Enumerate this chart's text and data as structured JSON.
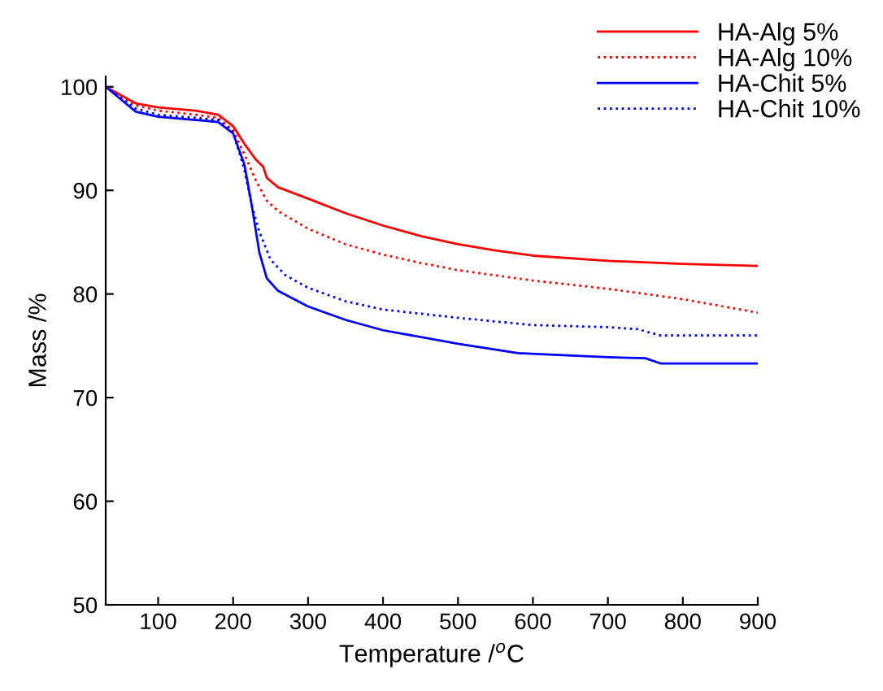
{
  "chart_data": {
    "type": "line",
    "xlabel": "Temperature /$^{o}$C",
    "ylabel": "Mass /%",
    "xlim": [
      30,
      900
    ],
    "ylim": [
      50,
      101
    ],
    "xticks": [
      100,
      200,
      300,
      400,
      500,
      600,
      700,
      800,
      900
    ],
    "yticks": [
      50,
      60,
      70,
      80,
      90,
      100
    ],
    "grid": false,
    "legend": "top right",
    "marker": "none",
    "series": [
      {
        "name": "HA-Alg 5%",
        "color": "#ff0000",
        "line_style": "solid",
        "x": [
          30,
          50,
          70,
          100,
          150,
          180,
          200,
          215,
          230,
          240,
          245,
          260,
          300,
          350,
          400,
          450,
          500,
          550,
          600,
          700,
          800,
          900
        ],
        "values": [
          100,
          99.2,
          98.4,
          98.0,
          97.7,
          97.3,
          96.2,
          94.5,
          93,
          92.3,
          91.2,
          90.3,
          89.2,
          87.8,
          86.6,
          85.6,
          84.8,
          84.2,
          83.7,
          83.2,
          82.9,
          82.7
        ]
      },
      {
        "name": "HA-Alg 10%",
        "color": "#ff0000",
        "line_style": "dotted",
        "x": [
          30,
          50,
          70,
          100,
          150,
          180,
          200,
          215,
          230,
          245,
          260,
          300,
          350,
          400,
          450,
          500,
          600,
          700,
          800,
          900
        ],
        "values": [
          100,
          99,
          98.2,
          97.7,
          97.3,
          97.0,
          95.8,
          93.5,
          91,
          89,
          88,
          86.3,
          84.8,
          83.8,
          83.0,
          82.3,
          81.3,
          80.5,
          79.5,
          78.2
        ]
      },
      {
        "name": "HA-Chit 5%",
        "color": "#0000ff",
        "line_style": "solid",
        "x": [
          30,
          50,
          70,
          100,
          150,
          180,
          200,
          215,
          225,
          235,
          245,
          260,
          300,
          350,
          400,
          500,
          580,
          700,
          750,
          770,
          800,
          900
        ],
        "values": [
          100,
          98.8,
          97.6,
          97.1,
          96.8,
          96.6,
          95.5,
          92.5,
          88.5,
          84,
          81.5,
          80.3,
          78.8,
          77.5,
          76.5,
          75.2,
          74.3,
          73.9,
          73.8,
          73.3,
          73.3,
          73.3
        ]
      },
      {
        "name": "HA-Chit 10%",
        "color": "#0000ff",
        "line_style": "dotted",
        "x": [
          30,
          50,
          70,
          100,
          150,
          180,
          200,
          215,
          225,
          235,
          250,
          270,
          300,
          350,
          400,
          500,
          600,
          700,
          740,
          770,
          800,
          900
        ],
        "values": [
          100,
          98.9,
          97.9,
          97.3,
          97.0,
          96.8,
          95.6,
          92,
          88.5,
          86,
          83.3,
          81.8,
          80.6,
          79.3,
          78.5,
          77.7,
          77.0,
          76.8,
          76.6,
          76.0,
          76.0,
          76.0
        ]
      }
    ]
  }
}
